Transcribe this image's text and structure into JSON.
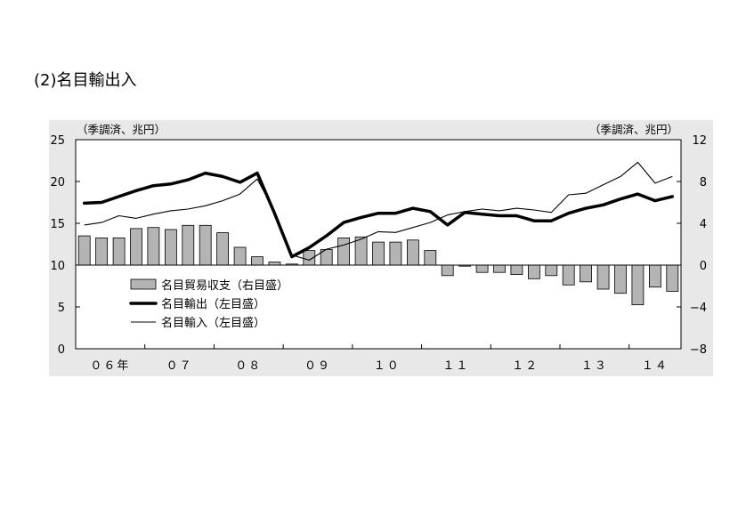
{
  "colors": {
    "page_background": "#ffffff",
    "chart_background": "#e8e8e8",
    "plot_background": "#ffffff",
    "axis": "#000000"
  },
  "chart_data": {
    "type": "bar",
    "title": "(2)名目輸出入",
    "ylabel_left": "（季調済、兆円）",
    "ylabel_right": "（季調済、兆円）",
    "x": [
      2006,
      2006.25,
      2006.5,
      2006.75,
      2007,
      2007.25,
      2007.5,
      2007.75,
      2008,
      2008.25,
      2008.5,
      2008.75,
      2009,
      2009.25,
      2009.5,
      2009.75,
      2010,
      2010.25,
      2010.5,
      2010.75,
      2011,
      2011.25,
      2011.5,
      2011.75,
      2012,
      2012.25,
      2012.5,
      2012.75,
      2013,
      2013.25,
      2013.5,
      2013.75,
      2014,
      2014.25,
      2014.5
    ],
    "xlim": [
      2006,
      2014.75
    ],
    "xtick_years": [
      2006,
      2007,
      2008,
      2009,
      2010,
      2011,
      2012,
      2013,
      2014
    ],
    "xticklabels": [
      "０６年",
      "０７",
      "０８",
      "０９",
      "１０",
      "１１",
      "１２",
      "１３",
      "１４"
    ],
    "ylim": [
      0,
      25
    ],
    "yticks": [
      0,
      5,
      10,
      15,
      20,
      25
    ],
    "yticklabels": [
      "0",
      "5",
      "10",
      "15",
      "20",
      "25"
    ],
    "y2lim": [
      -8,
      12
    ],
    "y2ticks": [
      -8,
      -4,
      0,
      4,
      8,
      12
    ],
    "y2ticklabels": [
      "−8",
      "−4",
      "0",
      "4",
      "8",
      "12"
    ],
    "grid": false,
    "legend_position": "lower-left",
    "series": [
      {
        "name": "名目貿易収支（右目盛）",
        "type": "bar",
        "axis": "right",
        "color": "#b4b4b4",
        "values": [
          2.8,
          2.6,
          2.6,
          3.5,
          3.6,
          3.4,
          3.8,
          3.8,
          3.1,
          1.7,
          0.8,
          0.3,
          0.1,
          1.4,
          1.5,
          2.6,
          2.7,
          2.2,
          2.2,
          2.4,
          1.4,
          -1.0,
          -0.1,
          -0.7,
          -0.7,
          -0.9,
          -1.3,
          -1.0,
          -1.9,
          -1.6,
          -2.3,
          -2.7,
          -3.8,
          -2.1,
          -2.5
        ]
      },
      {
        "name": "名目輸出（左目盛）",
        "type": "line",
        "axis": "left",
        "color": "#000000",
        "values": [
          17.4,
          17.5,
          18.2,
          18.9,
          19.5,
          19.7,
          20.2,
          21.0,
          20.6,
          19.9,
          21.0,
          16.2,
          11.0,
          12.1,
          13.5,
          15.1,
          15.7,
          16.2,
          16.2,
          16.8,
          16.4,
          14.8,
          16.3,
          16.1,
          15.9,
          15.9,
          15.3,
          15.3,
          16.2,
          16.8,
          17.2,
          17.9,
          18.5,
          17.7,
          18.2
        ]
      },
      {
        "name": "名目輸入（左目盛）",
        "type": "line",
        "axis": "left",
        "color": "#000000",
        "values": [
          14.8,
          15.1,
          15.9,
          15.6,
          16.1,
          16.5,
          16.7,
          17.1,
          17.7,
          18.5,
          20.3,
          16.4,
          11.2,
          10.6,
          11.9,
          12.4,
          13.1,
          14.0,
          13.9,
          14.5,
          15.1,
          16.0,
          16.4,
          16.7,
          16.5,
          16.8,
          16.6,
          16.3,
          18.4,
          18.6,
          19.6,
          20.6,
          22.3,
          19.8,
          20.6
        ]
      }
    ]
  }
}
